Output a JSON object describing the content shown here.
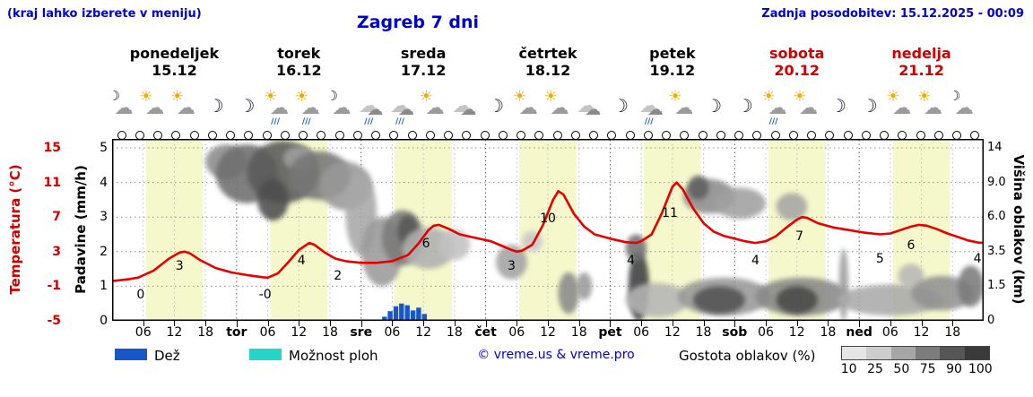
{
  "header": {
    "top_left_note": "(kraj lahko izberete v meniju)",
    "title": "Zagreb 7 dni",
    "last_update": "Zadnja posodobitev: 15.12.2025 - 00:09"
  },
  "days": [
    {
      "name": "ponedeljek",
      "date": "15.12",
      "weekend": false
    },
    {
      "name": "torek",
      "date": "16.12",
      "weekend": false
    },
    {
      "name": "sreda",
      "date": "17.12",
      "weekend": false
    },
    {
      "name": "četrtek",
      "date": "18.12",
      "weekend": false
    },
    {
      "name": "petek",
      "date": "19.12",
      "weekend": false
    },
    {
      "name": "sobota",
      "date": "20.12",
      "weekend": true
    },
    {
      "name": "nedelja",
      "date": "21.12",
      "weekend": true
    }
  ],
  "axes": {
    "left_outer": {
      "label": "Temperatura (°C)",
      "ticks": [
        "15",
        "11",
        "7",
        "3",
        "-1",
        "-5"
      ],
      "color": "#cc0000"
    },
    "left_inner": {
      "label": "Padavine (mm/h)",
      "ticks": [
        "5",
        "4",
        "3",
        "2",
        "1",
        "0"
      ]
    },
    "right": {
      "label": "Višina oblakov (km)",
      "ticks": [
        "14",
        "9.0",
        "6.0",
        "3.5",
        "1.5",
        "0"
      ]
    }
  },
  "x_axis": {
    "hour_labels": [
      "06",
      "12",
      "18"
    ],
    "day_abbrevs": [
      "tor",
      "sre",
      "čet",
      "pet",
      "sob",
      "ned"
    ]
  },
  "legend": {
    "rain_label": "Dež",
    "rain_color": "#1757c8",
    "showers_label": "Možnost ploh",
    "showers_color": "#25d6c8",
    "copyright": "© vreme.us & vreme.pro",
    "cloud_density_label": "Gostota oblakov (%)",
    "cloud_density_ticks": [
      "10",
      "25",
      "50",
      "75",
      "90",
      "100"
    ]
  },
  "chart_data": {
    "type": "line",
    "title": "Zagreb 7 dni",
    "x_axis_description": "čas v urah, 7 dni od ponedeljka 15.12 do nedelje 21.12",
    "x_range_hours": [
      0,
      168
    ],
    "precip_axis": {
      "label": "Padavine (mm/h)",
      "range": [
        0,
        5
      ]
    },
    "temp_axis": {
      "label": "Temperatura (°C)",
      "range": [
        -5,
        15
      ],
      "ticks": [
        15,
        11,
        7,
        3,
        -1,
        -5
      ]
    },
    "cloud_height_axis": {
      "label": "Višina oblakov (km)",
      "ticks": [
        14,
        9.0,
        6.0,
        3.5,
        1.5,
        0
      ]
    },
    "daylight_bands_hours": [
      6.5,
      17.5
    ],
    "temperature_curve": [
      [
        0,
        -0.4
      ],
      [
        3,
        -0.2
      ],
      [
        5,
        0
      ],
      [
        8,
        0.8
      ],
      [
        11,
        2.2
      ],
      [
        13,
        2.9
      ],
      [
        14,
        3
      ],
      [
        15,
        2.8
      ],
      [
        17,
        2
      ],
      [
        20,
        1.1
      ],
      [
        23,
        0.6
      ],
      [
        26,
        0.3
      ],
      [
        29,
        0.05
      ],
      [
        30,
        0
      ],
      [
        32,
        0.5
      ],
      [
        34,
        1.8
      ],
      [
        36,
        3.2
      ],
      [
        38,
        4
      ],
      [
        39,
        3.8
      ],
      [
        41,
        2.9
      ],
      [
        43,
        2.2
      ],
      [
        45,
        1.9
      ],
      [
        48,
        1.7
      ],
      [
        51,
        1.7
      ],
      [
        54,
        1.9
      ],
      [
        57,
        2.6
      ],
      [
        59,
        3.9
      ],
      [
        61,
        5.5
      ],
      [
        62,
        6
      ],
      [
        63,
        6.1
      ],
      [
        65,
        5.6
      ],
      [
        67,
        5
      ],
      [
        70,
        4.6
      ],
      [
        73,
        4.2
      ],
      [
        75,
        3.7
      ],
      [
        77,
        3.2
      ],
      [
        78,
        3
      ],
      [
        79,
        3.1
      ],
      [
        81,
        3.8
      ],
      [
        83,
        6
      ],
      [
        85,
        9
      ],
      [
        86,
        10
      ],
      [
        87,
        9.6
      ],
      [
        89,
        7.4
      ],
      [
        91,
        5.9
      ],
      [
        93,
        5
      ],
      [
        96,
        4.5
      ],
      [
        99,
        4.1
      ],
      [
        101,
        4
      ],
      [
        102,
        4.2
      ],
      [
        104,
        5
      ],
      [
        106,
        7.5
      ],
      [
        108,
        10.5
      ],
      [
        108.8,
        11
      ],
      [
        110,
        10.2
      ],
      [
        112,
        8
      ],
      [
        114,
        6.3
      ],
      [
        116,
        5.3
      ],
      [
        118,
        4.8
      ],
      [
        120,
        4.5
      ],
      [
        122,
        4.2
      ],
      [
        124,
        4
      ],
      [
        126,
        4.2
      ],
      [
        128,
        4.8
      ],
      [
        130,
        5.8
      ],
      [
        132,
        6.7
      ],
      [
        133,
        7
      ],
      [
        134,
        6.9
      ],
      [
        136,
        6.3
      ],
      [
        139,
        5.8
      ],
      [
        142,
        5.5
      ],
      [
        145,
        5.2
      ],
      [
        148,
        5
      ],
      [
        150,
        5.1
      ],
      [
        152,
        5.5
      ],
      [
        154,
        5.9
      ],
      [
        155.5,
        6.1
      ],
      [
        157,
        6
      ],
      [
        159,
        5.6
      ],
      [
        161,
        5.1
      ],
      [
        163,
        4.7
      ],
      [
        165,
        4.3
      ],
      [
        167,
        4.05
      ],
      [
        168,
        4
      ]
    ],
    "temperature_labels": [
      {
        "text": "0",
        "t": 5.5,
        "y": -2.0
      },
      {
        "text": "3",
        "t": 13,
        "y": 1.3
      },
      {
        "text": "-0",
        "t": 29.5,
        "y": -2.0
      },
      {
        "text": "4",
        "t": 36.5,
        "y": 1.9
      },
      {
        "text": "2",
        "t": 43.5,
        "y": 0.2
      },
      {
        "text": "6",
        "t": 60.5,
        "y": 3.9
      },
      {
        "text": "3",
        "t": 77,
        "y": 1.3
      },
      {
        "text": "10",
        "t": 84,
        "y": 6.8
      },
      {
        "text": "4",
        "t": 100,
        "y": 1.9
      },
      {
        "text": "11",
        "t": 107.5,
        "y": 7.4
      },
      {
        "text": "4",
        "t": 124,
        "y": 1.9
      },
      {
        "text": "7",
        "t": 132.5,
        "y": 4.7
      },
      {
        "text": "5",
        "t": 148,
        "y": 2.1
      },
      {
        "text": "6",
        "t": 154,
        "y": 3.7
      },
      {
        "text": "4",
        "t": 166.8,
        "y": 2.1
      }
    ],
    "precipitation_bars": [
      {
        "t": 52.5,
        "mm": 0.12
      },
      {
        "t": 53.6,
        "mm": 0.28
      },
      {
        "t": 54.7,
        "mm": 0.42
      },
      {
        "t": 55.8,
        "mm": 0.5
      },
      {
        "t": 56.9,
        "mm": 0.45
      },
      {
        "t": 58.0,
        "mm": 0.3
      },
      {
        "t": 59.1,
        "mm": 0.38
      },
      {
        "t": 60.2,
        "mm": 0.2
      }
    ],
    "cloud_masses": [
      {
        "t": 22,
        "rt": 4,
        "mm": 4.6,
        "rmm": 0.5,
        "color": "#8c8c8c"
      },
      {
        "t": 26,
        "rt": 6,
        "mm": 4.25,
        "rmm": 0.85,
        "color": "#6e6e6e"
      },
      {
        "t": 33,
        "rt": 7,
        "mm": 4.3,
        "rmm": 0.9,
        "color": "#5a5a5a"
      },
      {
        "t": 31,
        "rt": 3,
        "mm": 3.5,
        "rmm": 0.6,
        "color": "#4d4d4d"
      },
      {
        "t": 36,
        "rt": 3,
        "mm": 4.7,
        "rmm": 0.35,
        "color": "#9e9e9e"
      },
      {
        "t": 40,
        "rt": 6,
        "mm": 4.2,
        "rmm": 0.7,
        "color": "#777777"
      },
      {
        "t": 45,
        "rt": 5,
        "mm": 3.9,
        "rmm": 0.7,
        "color": "#999999"
      },
      {
        "t": 48,
        "rt": 3,
        "mm": 3.1,
        "rmm": 1.2,
        "color": "#a8a8a8"
      },
      {
        "t": 52,
        "rt": 4,
        "mm": 2.0,
        "rmm": 1.0,
        "color": "#9a9a9a"
      },
      {
        "t": 56,
        "rt": 4,
        "mm": 2.4,
        "rmm": 0.8,
        "color": "#7a7a7a"
      },
      {
        "t": 57,
        "rt": 2,
        "mm": 2.6,
        "rmm": 0.45,
        "color": "#565656"
      },
      {
        "t": 61,
        "rt": 5,
        "mm": 2.1,
        "rmm": 0.6,
        "color": "#b0b0b0"
      },
      {
        "t": 66,
        "rt": 3,
        "mm": 2.2,
        "rmm": 0.45,
        "color": "#c2c2c2"
      },
      {
        "t": 77,
        "rt": 3,
        "mm": 1.7,
        "rmm": 0.5,
        "color": "#a2a2a2"
      },
      {
        "t": 81,
        "rt": 2,
        "mm": 2.3,
        "rmm": 0.3,
        "color": "#c8c8c8"
      },
      {
        "t": 88,
        "rt": 2,
        "mm": 0.8,
        "rmm": 0.6,
        "color": "#8a8a8a"
      },
      {
        "t": 91,
        "rt": 1.5,
        "mm": 1.0,
        "rmm": 0.4,
        "color": "#9a9a9a"
      },
      {
        "t": 101.5,
        "rt": 2,
        "mm": 1.0,
        "rmm": 1.0,
        "color": "#3e3e3e"
      },
      {
        "t": 101,
        "rt": 2,
        "mm": 2.1,
        "rmm": 0.4,
        "color": "#6f6f6f"
      },
      {
        "t": 105,
        "rt": 6,
        "mm": 0.6,
        "rmm": 0.5,
        "color": "#b5b5b5"
      },
      {
        "t": 115,
        "rt": 5,
        "mm": 3.6,
        "rmm": 0.5,
        "color": "#8c8c8c"
      },
      {
        "t": 113,
        "rt": 2,
        "mm": 3.85,
        "rmm": 0.35,
        "color": "#5e5e5e"
      },
      {
        "t": 121,
        "rt": 5,
        "mm": 3.4,
        "rmm": 0.45,
        "color": "#a0a0a0"
      },
      {
        "t": 118,
        "rt": 9,
        "mm": 0.7,
        "rmm": 0.55,
        "color": "#989898"
      },
      {
        "t": 117,
        "rt": 5,
        "mm": 0.6,
        "rmm": 0.4,
        "color": "#525252"
      },
      {
        "t": 131,
        "rt": 3,
        "mm": 3.3,
        "rmm": 0.4,
        "color": "#a6a6a6"
      },
      {
        "t": 133,
        "rt": 9,
        "mm": 0.7,
        "rmm": 0.55,
        "color": "#888888"
      },
      {
        "t": 132,
        "rt": 4,
        "mm": 0.6,
        "rmm": 0.4,
        "color": "#4a4a4a"
      },
      {
        "t": 141,
        "rt": 0.9,
        "mm": 1.05,
        "rmm": 1.05,
        "color": "#9c9c9c"
      },
      {
        "t": 150,
        "rt": 10,
        "mm": 0.6,
        "rmm": 0.45,
        "color": "#aaaaaa"
      },
      {
        "t": 154,
        "rt": 2.5,
        "mm": 1.3,
        "rmm": 0.35,
        "color": "#b8b8b8"
      },
      {
        "t": 160,
        "rt": 6,
        "mm": 0.8,
        "rmm": 0.5,
        "color": "#929292"
      },
      {
        "t": 165.5,
        "rt": 2.5,
        "mm": 1.0,
        "rmm": 0.6,
        "color": "#7a7a7a"
      }
    ],
    "weather_icons": [
      "moon-cloud",
      "sun-cloud",
      "sun-cloud",
      "moon",
      "moon",
      "sun-cloud-rain",
      "sun-cloud-rain",
      "moon-cloud",
      "cloud-rain",
      "cloud-rain",
      "sun-cloud",
      "cloud",
      "moon",
      "sun-cloud",
      "sun-cloud",
      "cloud",
      "moon",
      "cloud-rain",
      "sun-cloud",
      "moon",
      "moon",
      "sun-cloud-rain",
      "sun-cloud",
      "moon",
      "moon",
      "sun-cloud",
      "sun-cloud",
      "cloud-moon"
    ],
    "circle_markers_count": 48
  }
}
